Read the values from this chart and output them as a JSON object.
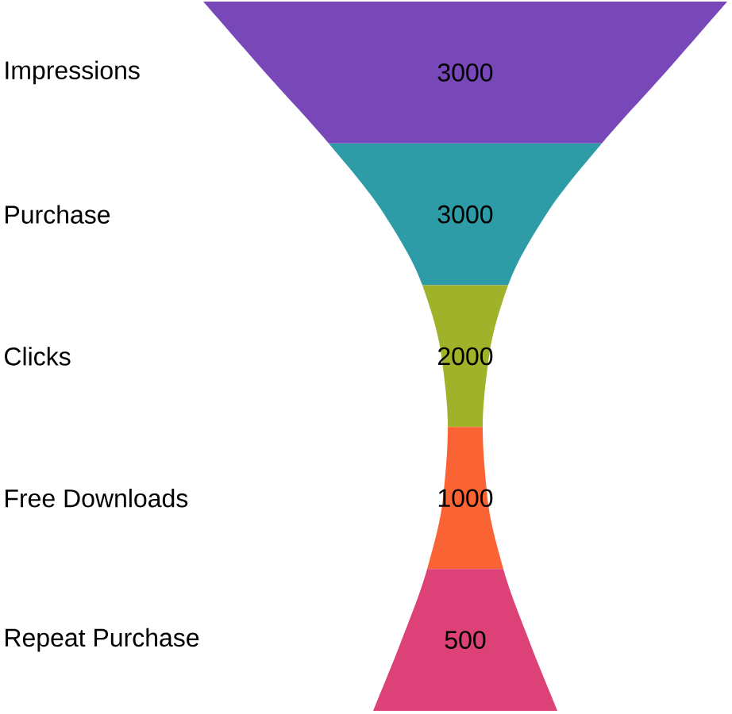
{
  "chart_data": {
    "type": "other",
    "categories": [
      "Impressions",
      "Purchase",
      "Clicks",
      "Free Downloads",
      "Repeat Purchase"
    ],
    "values": [
      3000,
      3000,
      2000,
      1000,
      500
    ],
    "colors": [
      "#7847b8",
      "#2e9ca6",
      "#a0b22a",
      "#fa6333",
      "#dc4277"
    ],
    "data_labels": true
  }
}
